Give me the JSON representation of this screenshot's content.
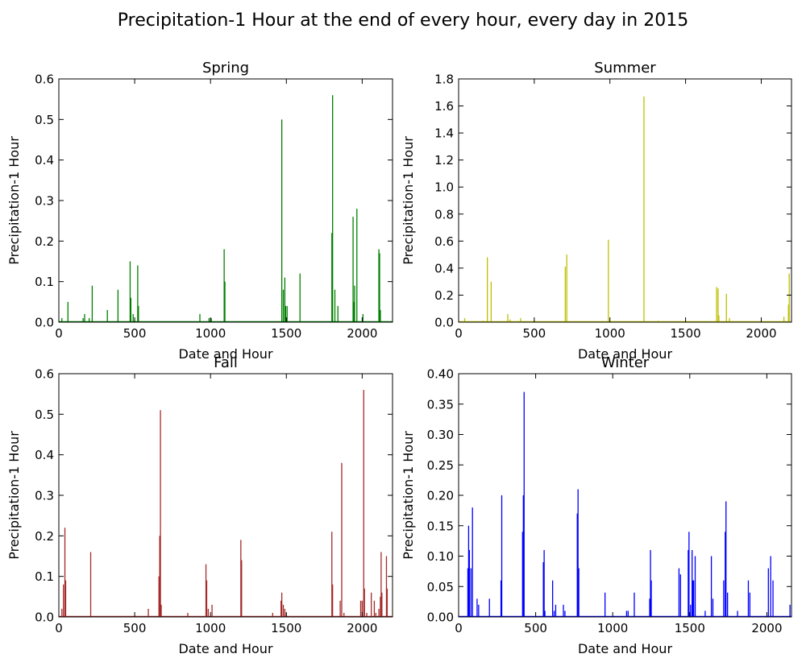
{
  "figure": {
    "title": "Precipitation-1 Hour at the end of every hour, every day in 2015"
  },
  "chart_data": [
    {
      "type": "line",
      "title": "Spring",
      "xlabel": "Date and Hour",
      "ylabel": "Precipitation-1 Hour",
      "color": "#008000",
      "xlim": [
        0,
        2200
      ],
      "ylim": [
        0,
        0.6
      ],
      "xticks": [
        0,
        500,
        1000,
        1500,
        2000
      ],
      "yticks": [
        0.0,
        0.1,
        0.2,
        0.3,
        0.4,
        0.5,
        0.6
      ],
      "ytick_labels": [
        "0.0",
        "0.1",
        "0.2",
        "0.3",
        "0.4",
        "0.5",
        "0.6"
      ],
      "spikes": [
        [
          20,
          0.01
        ],
        [
          60,
          0.05
        ],
        [
          160,
          0.01
        ],
        [
          170,
          0.02
        ],
        [
          200,
          0.01
        ],
        [
          220,
          0.09
        ],
        [
          320,
          0.03
        ],
        [
          390,
          0.08
        ],
        [
          470,
          0.15
        ],
        [
          475,
          0.06
        ],
        [
          490,
          0.02
        ],
        [
          520,
          0.14
        ],
        [
          525,
          0.04
        ],
        [
          930,
          0.02
        ],
        [
          990,
          0.01
        ],
        [
          1005,
          0.01
        ],
        [
          1090,
          0.18
        ],
        [
          1095,
          0.1
        ],
        [
          1470,
          0.5
        ],
        [
          1480,
          0.08
        ],
        [
          1490,
          0.11
        ],
        [
          1495,
          0.04
        ],
        [
          1505,
          0.04
        ],
        [
          1590,
          0.12
        ],
        [
          1800,
          0.22
        ],
        [
          1805,
          0.56
        ],
        [
          1820,
          0.08
        ],
        [
          1840,
          0.04
        ],
        [
          1940,
          0.26
        ],
        [
          1945,
          0.05
        ],
        [
          1950,
          0.09
        ],
        [
          1965,
          0.28
        ],
        [
          2005,
          0.02
        ],
        [
          2110,
          0.18
        ],
        [
          2115,
          0.17
        ],
        [
          2120,
          0.03
        ]
      ]
    },
    {
      "type": "line",
      "title": "Summer",
      "xlabel": "Date and Hour",
      "ylabel": "Precipitation-1 Hour",
      "color": "#bfbf00",
      "xlim": [
        0,
        2200
      ],
      "ylim": [
        0,
        1.8
      ],
      "xticks": [
        0,
        500,
        1000,
        1500,
        2000
      ],
      "yticks": [
        0.0,
        0.2,
        0.4,
        0.6,
        0.8,
        1.0,
        1.2,
        1.4,
        1.6,
        1.8
      ],
      "ytick_labels": [
        "0.0",
        "0.2",
        "0.4",
        "0.6",
        "0.8",
        "1.0",
        "1.2",
        "1.4",
        "1.6",
        "1.8"
      ],
      "spikes": [
        [
          40,
          0.03
        ],
        [
          160,
          0.01
        ],
        [
          190,
          0.48
        ],
        [
          215,
          0.3
        ],
        [
          325,
          0.06
        ],
        [
          340,
          0.02
        ],
        [
          410,
          0.03
        ],
        [
          500,
          0.01
        ],
        [
          705,
          0.41
        ],
        [
          715,
          0.5
        ],
        [
          990,
          0.61
        ],
        [
          1225,
          1.67
        ],
        [
          1320,
          0.01
        ],
        [
          1500,
          0.01
        ],
        [
          1705,
          0.26
        ],
        [
          1715,
          0.25
        ],
        [
          1720,
          0.05
        ],
        [
          1770,
          0.21
        ],
        [
          1790,
          0.03
        ],
        [
          2150,
          0.04
        ],
        [
          2180,
          0.13
        ],
        [
          2185,
          0.36
        ]
      ]
    },
    {
      "type": "line",
      "title": "Fall",
      "xlabel": "Date and Hour",
      "ylabel": "Precipitation-1 Hour",
      "color": "#a52a2a",
      "xlim": [
        0,
        2200
      ],
      "ylim": [
        0,
        0.6
      ],
      "xticks": [
        0,
        500,
        1000,
        1500,
        2000
      ],
      "yticks": [
        0.0,
        0.1,
        0.2,
        0.3,
        0.4,
        0.5,
        0.6
      ],
      "ytick_labels": [
        "0.0",
        "0.1",
        "0.2",
        "0.3",
        "0.4",
        "0.5",
        "0.6"
      ],
      "spikes": [
        [
          20,
          0.02
        ],
        [
          30,
          0.08
        ],
        [
          40,
          0.22
        ],
        [
          45,
          0.09
        ],
        [
          210,
          0.16
        ],
        [
          590,
          0.02
        ],
        [
          660,
          0.1
        ],
        [
          665,
          0.2
        ],
        [
          670,
          0.51
        ],
        [
          675,
          0.03
        ],
        [
          850,
          0.01
        ],
        [
          970,
          0.13
        ],
        [
          975,
          0.09
        ],
        [
          985,
          0.02
        ],
        [
          1010,
          0.03
        ],
        [
          1200,
          0.19
        ],
        [
          1205,
          0.14
        ],
        [
          1410,
          0.01
        ],
        [
          1465,
          0.04
        ],
        [
          1470,
          0.06
        ],
        [
          1480,
          0.03
        ],
        [
          1490,
          0.02
        ],
        [
          1500,
          0.01
        ],
        [
          1800,
          0.21
        ],
        [
          1805,
          0.08
        ],
        [
          1855,
          0.04
        ],
        [
          1865,
          0.38
        ],
        [
          1880,
          0.01
        ],
        [
          1990,
          0.04
        ],
        [
          2000,
          0.04
        ],
        [
          2010,
          0.56
        ],
        [
          2015,
          0.07
        ],
        [
          2030,
          0.01
        ],
        [
          2060,
          0.06
        ],
        [
          2080,
          0.04
        ],
        [
          2090,
          0.01
        ],
        [
          2110,
          0.02
        ],
        [
          2120,
          0.05
        ],
        [
          2125,
          0.16
        ],
        [
          2130,
          0.06
        ],
        [
          2160,
          0.15
        ],
        [
          2165,
          0.07
        ]
      ]
    },
    {
      "type": "line",
      "title": "Winter",
      "xlabel": "Date and Hour",
      "ylabel": "Precipitation-1 Hour",
      "color": "#0000ff",
      "xlim": [
        0,
        2160
      ],
      "ylim": [
        0,
        0.4
      ],
      "xticks": [
        0,
        500,
        1000,
        1500,
        2000
      ],
      "yticks": [
        0.0,
        0.05,
        0.1,
        0.15,
        0.2,
        0.25,
        0.3,
        0.35,
        0.4
      ],
      "ytick_labels": [
        "0.00",
        "0.05",
        "0.10",
        "0.15",
        "0.20",
        "0.25",
        "0.30",
        "0.35",
        "0.40"
      ],
      "spikes": [
        [
          60,
          0.08
        ],
        [
          65,
          0.15
        ],
        [
          70,
          0.11
        ],
        [
          80,
          0.08
        ],
        [
          90,
          0.18
        ],
        [
          120,
          0.03
        ],
        [
          130,
          0.02
        ],
        [
          200,
          0.03
        ],
        [
          275,
          0.06
        ],
        [
          280,
          0.2
        ],
        [
          415,
          0.14
        ],
        [
          420,
          0.2
        ],
        [
          425,
          0.37
        ],
        [
          550,
          0.09
        ],
        [
          555,
          0.11
        ],
        [
          560,
          0.01
        ],
        [
          610,
          0.06
        ],
        [
          620,
          0.01
        ],
        [
          630,
          0.02
        ],
        [
          680,
          0.02
        ],
        [
          690,
          0.01
        ],
        [
          770,
          0.17
        ],
        [
          775,
          0.21
        ],
        [
          780,
          0.08
        ],
        [
          950,
          0.04
        ],
        [
          1090,
          0.01
        ],
        [
          1100,
          0.01
        ],
        [
          1140,
          0.04
        ],
        [
          1240,
          0.03
        ],
        [
          1245,
          0.11
        ],
        [
          1250,
          0.06
        ],
        [
          1430,
          0.08
        ],
        [
          1440,
          0.07
        ],
        [
          1490,
          0.11
        ],
        [
          1495,
          0.14
        ],
        [
          1505,
          0.02
        ],
        [
          1515,
          0.11
        ],
        [
          1520,
          0.06
        ],
        [
          1525,
          0.06
        ],
        [
          1535,
          0.1
        ],
        [
          1600,
          0.01
        ],
        [
          1640,
          0.1
        ],
        [
          1650,
          0.03
        ],
        [
          1720,
          0.06
        ],
        [
          1730,
          0.14
        ],
        [
          1735,
          0.19
        ],
        [
          1745,
          0.04
        ],
        [
          1810,
          0.01
        ],
        [
          1880,
          0.06
        ],
        [
          1890,
          0.04
        ],
        [
          2010,
          0.08
        ],
        [
          2025,
          0.1
        ],
        [
          2040,
          0.06
        ],
        [
          2150,
          0.02
        ]
      ]
    }
  ]
}
